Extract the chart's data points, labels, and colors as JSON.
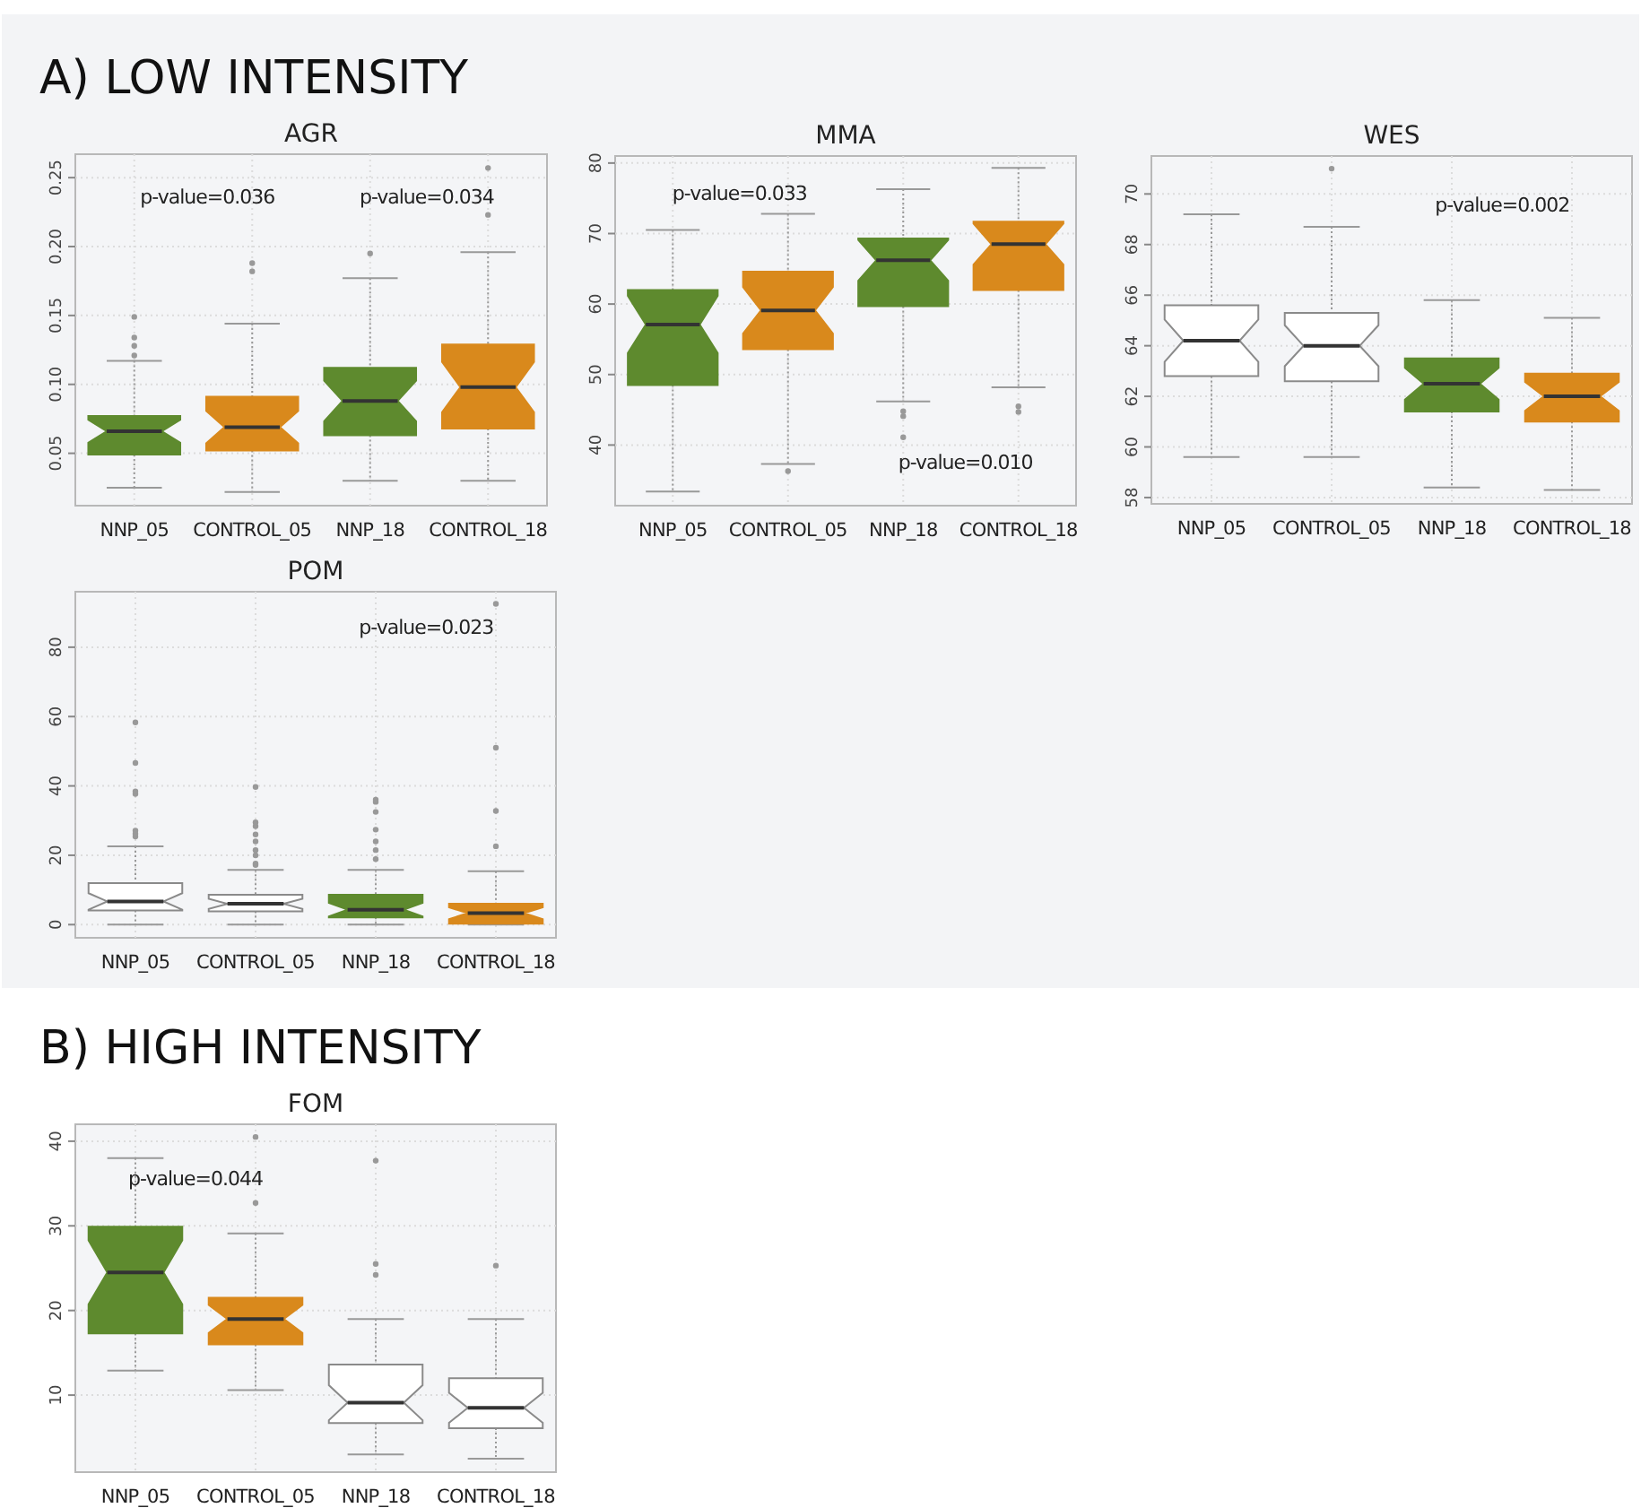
{
  "chart_data": [
    {
      "type": "box",
      "title": "AGR",
      "subtitle": "A) LOW INTENSITY",
      "annotations": [
        "p-value=0.036",
        "p-value=0.034"
      ],
      "categories": [
        "NNP_05",
        "CONTROL_05",
        "NNP_18",
        "CONTROL_18"
      ],
      "colors": [
        "#5e8a2e",
        "#d9891c",
        "#5e8a2e",
        "#d9891c"
      ],
      "ylim": [
        0.012,
        0.267
      ],
      "yticks": [
        0.05,
        {
          "value": 0.1,
          "label": "0.10"
        },
        0.15,
        {
          "value": 0.2,
          "label": "0.20"
        },
        0.25
      ],
      "grid": true,
      "boxes": [
        {
          "low": 0.025,
          "q1": 0.049,
          "median": 0.066,
          "q3": 0.077,
          "high": 0.117,
          "outliers": [
            0.121,
            0.128,
            0.134,
            0.149
          ]
        },
        {
          "low": 0.022,
          "q1": 0.052,
          "median": 0.069,
          "q3": 0.091,
          "high": 0.144,
          "outliers": [
            0.182,
            0.188
          ]
        },
        {
          "low": 0.03,
          "q1": 0.063,
          "median": 0.088,
          "q3": 0.112,
          "high": 0.177,
          "outliers": [
            0.195
          ]
        },
        {
          "low": 0.03,
          "q1": 0.068,
          "median": 0.098,
          "q3": 0.129,
          "high": 0.196,
          "outliers": [
            0.223,
            0.257
          ]
        }
      ]
    },
    {
      "type": "box",
      "title": "MMA",
      "annotations": [
        "p-value=0.033",
        "p-value=0.010"
      ],
      "categories": [
        "NNP_05",
        "CONTROL_05",
        "NNP_18",
        "CONTROL_18"
      ],
      "colors": [
        "#5e8a2e",
        "#d9891c",
        "#5e8a2e",
        "#d9891c"
      ],
      "ylim": [
        31.4,
        81
      ],
      "yticks": [
        40,
        50,
        60,
        70,
        80
      ],
      "grid": true,
      "boxes": [
        {
          "low": 33.4,
          "q1": 48.5,
          "median": 57.1,
          "q3": 62,
          "high": 70.5
        },
        {
          "low": 37.3,
          "q1": 53.6,
          "median": 59.1,
          "q3": 64.6,
          "high": 72.8,
          "outliers": [
            36.3
          ]
        },
        {
          "low": 46.2,
          "q1": 59.7,
          "median": 66.2,
          "q3": 69.3,
          "high": 76.3,
          "outliers": [
            44.8,
            44.1,
            41.1
          ]
        },
        {
          "low": 48.2,
          "q1": 62,
          "median": 68.5,
          "q3": 71.7,
          "high": 79.3,
          "outliers": [
            45.5,
            44.7
          ]
        }
      ]
    },
    {
      "type": "box",
      "title": "WES",
      "annotations": [
        "p-value=0.002"
      ],
      "categories": [
        "NNP_05",
        "CONTROL_05",
        "NNP_18",
        "CONTROL_18"
      ],
      "colors": [
        "#ffffff",
        "#ffffff",
        "#5e8a2e",
        "#d9891c"
      ],
      "ylim": [
        57.75,
        71.5
      ],
      "yticks": [
        58,
        60,
        62,
        64,
        66,
        68,
        70
      ],
      "grid": true,
      "boxes": [
        {
          "low": 59.6,
          "q1": 62.8,
          "median": 64.2,
          "q3": 65.6,
          "high": 69.2
        },
        {
          "low": 59.6,
          "q1": 62.6,
          "median": 64,
          "q3": 65.3,
          "high": 68.7,
          "outliers": [
            71
          ]
        },
        {
          "low": 58.4,
          "q1": 61.4,
          "median": 62.5,
          "q3": 63.5,
          "high": 65.8
        },
        {
          "low": 58.3,
          "q1": 61,
          "median": 62,
          "q3": 62.9,
          "high": 65.1
        }
      ]
    },
    {
      "type": "box",
      "title": "POM",
      "annotations": [
        "p-value=0.023"
      ],
      "categories": [
        "NNP_05",
        "CONTROL_05",
        "NNP_18",
        "CONTROL_18"
      ],
      "colors": [
        "#ffffff",
        "#ffffff",
        "#5e8a2e",
        "#d9891c"
      ],
      "ylim": [
        -3.8,
        96
      ],
      "yticks": [
        0,
        20,
        40,
        60,
        80
      ],
      "grid": true,
      "boxes": [
        {
          "low": 0,
          "q1": 4.1,
          "median": 6.7,
          "q3": 12,
          "high": 22.6,
          "outliers": [
            25.4,
            26.2,
            27.1,
            37.7,
            38.4,
            46.6,
            58.3
          ]
        },
        {
          "low": 0,
          "q1": 3.8,
          "median": 6,
          "q3": 8.6,
          "high": 15.8,
          "outliers": [
            17.2,
            17.6,
            20,
            21.5,
            24,
            26,
            28.4,
            29.5,
            39.7
          ]
        },
        {
          "low": 0,
          "q1": 2.1,
          "median": 4.3,
          "q3": 8.6,
          "high": 15.8,
          "outliers": [
            18.9,
            21.5,
            24,
            27.4,
            32.5,
            35.4,
            36
          ]
        },
        {
          "low": 0,
          "q1": 0.3,
          "median": 3.3,
          "q3": 6,
          "high": 15.4,
          "outliers": [
            22.6,
            32.8,
            51,
            92.5
          ]
        }
      ]
    },
    {
      "type": "box",
      "title": "FOM",
      "subtitle": "B) HIGH INTENSITY",
      "annotations": [
        "p-value=0.044"
      ],
      "categories": [
        "NNP_05",
        "CONTROL_05",
        "NNP_18",
        "CONTROL_18"
      ],
      "colors": [
        "#5e8a2e",
        "#d9891c",
        "#ffffff",
        "#ffffff"
      ],
      "ylim": [
        0.9,
        42
      ],
      "yticks": [
        10,
        20,
        30,
        40
      ],
      "grid": true,
      "boxes": [
        {
          "low": 12.9,
          "q1": 17.3,
          "median": 24.5,
          "q3": 29.9,
          "high": 38
        },
        {
          "low": 10.6,
          "q1": 16,
          "median": 19,
          "q3": 21.5,
          "high": 29.1,
          "outliers": [
            32.7,
            40.5
          ]
        },
        {
          "low": 3,
          "q1": 6.7,
          "median": 9.1,
          "q3": 13.6,
          "high": 19,
          "outliers": [
            24.2,
            25.5,
            37.7
          ]
        },
        {
          "low": 2.5,
          "q1": 6.1,
          "median": 8.5,
          "q3": 12,
          "high": 19,
          "outliers": [
            25.3
          ]
        }
      ]
    }
  ]
}
